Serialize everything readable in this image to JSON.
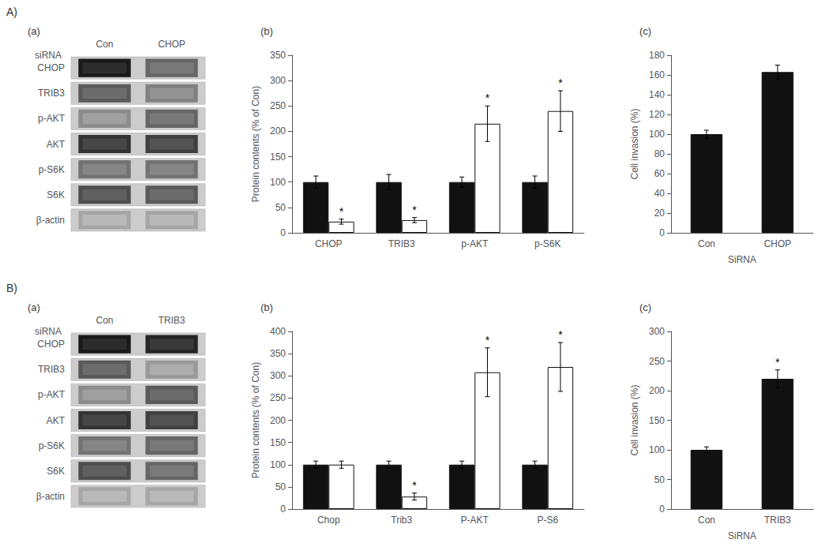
{
  "chart_data": [
    {
      "type": "heatmap",
      "title": "(a)",
      "annotations": [
        "A)"
      ],
      "xlabel": "siRNA",
      "x": [
        "Con",
        "CHOP"
      ],
      "categories": [
        "CHOP",
        "TRIB3",
        "p-AKT",
        "AKT",
        "p-S6K",
        "S6K",
        "β-actin"
      ],
      "cells": [
        [
          0.9,
          0.6
        ],
        [
          0.65,
          0.5
        ],
        [
          0.45,
          0.6
        ],
        [
          0.8,
          0.75
        ],
        [
          0.55,
          0.55
        ],
        [
          0.7,
          0.65
        ],
        [
          0.35,
          0.35
        ]
      ]
    },
    {
      "type": "bar",
      "title": "(b)",
      "categories": [
        "CHOP",
        "TRIB3",
        "p-AKT",
        "p-S6K"
      ],
      "ylabel": "Protein contents (% of Con)",
      "ylim": [
        0,
        350
      ],
      "yticks": [
        0,
        50,
        100,
        150,
        200,
        250,
        300,
        350
      ],
      "grid": false,
      "series": [
        {
          "color": "#111111",
          "values": [
            100,
            100,
            100,
            100
          ],
          "errors": [
            12,
            15,
            10,
            12
          ]
        },
        {
          "color": "#ffffff",
          "values": [
            22,
            25,
            215,
            240
          ],
          "errors": [
            5,
            5,
            35,
            40
          ],
          "annotations": [
            "*",
            "*",
            "*",
            "*"
          ]
        }
      ]
    },
    {
      "type": "bar",
      "title": "(c)",
      "categories": [
        "Con",
        "CHOP"
      ],
      "xlabel": "SiRNA",
      "ylabel": "Cell invasion (%)",
      "ylim": [
        0,
        180
      ],
      "yticks": [
        0,
        20,
        40,
        60,
        80,
        100,
        120,
        140,
        160,
        180
      ],
      "grid": false,
      "series": [
        {
          "color": "#111111",
          "values": [
            100,
            163
          ],
          "errors": [
            4,
            7
          ]
        }
      ]
    },
    {
      "type": "heatmap",
      "title": "(a)",
      "annotations": [
        "B)"
      ],
      "xlabel": "siRNA",
      "x": [
        "Con",
        "TRIB3"
      ],
      "categories": [
        "CHOP",
        "TRIB3",
        "p-AKT",
        "AKT",
        "p-S6K",
        "S6K",
        "β-actin"
      ],
      "cells": [
        [
          0.9,
          0.85
        ],
        [
          0.65,
          0.4
        ],
        [
          0.45,
          0.65
        ],
        [
          0.8,
          0.75
        ],
        [
          0.55,
          0.6
        ],
        [
          0.7,
          0.6
        ],
        [
          0.35,
          0.35
        ]
      ]
    },
    {
      "type": "bar",
      "title": "(b)",
      "categories": [
        "Chop",
        "Trib3",
        "P-AKT",
        "P-S6"
      ],
      "ylabel": "Protein contents (% of Con)",
      "ylim": [
        0,
        400
      ],
      "yticks": [
        0,
        50,
        100,
        150,
        200,
        250,
        300,
        350,
        400
      ],
      "grid": false,
      "series": [
        {
          "color": "#111111",
          "values": [
            100,
            100,
            100,
            100
          ],
          "errors": [
            8,
            8,
            8,
            8
          ]
        },
        {
          "color": "#ffffff",
          "values": [
            100,
            28,
            308,
            320
          ],
          "errors": [
            8,
            8,
            55,
            55
          ],
          "annotations": [
            null,
            "*",
            "*",
            "*"
          ]
        }
      ]
    },
    {
      "type": "bar",
      "title": "(c)",
      "categories": [
        "Con",
        "TRIB3"
      ],
      "xlabel": "SiRNA",
      "ylabel": "Cell invasion (%)",
      "ylim": [
        0,
        300
      ],
      "yticks": [
        0,
        50,
        100,
        150,
        200,
        250,
        300
      ],
      "grid": false,
      "series": [
        {
          "color": "#111111",
          "values": [
            100,
            220
          ],
          "errors": [
            5,
            15
          ],
          "annotations": [
            null,
            "*"
          ]
        }
      ]
    }
  ]
}
